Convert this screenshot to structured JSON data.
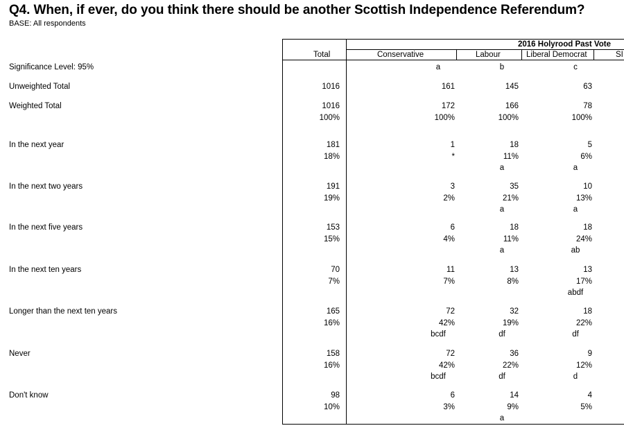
{
  "title": "Q4. When, if ever, do you think there should be another Scottish Independence Referendum?",
  "base": "BASE: All respondents",
  "banner": "2016 Holyrood Past Vote",
  "columns": {
    "total": "Total",
    "conservative": "Conservative",
    "labour": "Labour",
    "libdem": "Liberal Democrat",
    "snp_partial": "SI"
  },
  "rows": [
    {
      "label": "Significance Level: 95%",
      "total": [
        "",
        "",
        ""
      ],
      "con": [
        "a",
        "",
        ""
      ],
      "lab": [
        "b",
        "",
        ""
      ],
      "ld": [
        "c",
        "",
        ""
      ]
    },
    {
      "label": "Unweighted Total",
      "total": [
        "1016",
        "",
        ""
      ],
      "con": [
        "161",
        "",
        ""
      ],
      "lab": [
        "145",
        "",
        ""
      ],
      "ld": [
        "63",
        "",
        ""
      ]
    },
    {
      "label": "Weighted Total",
      "total": [
        "1016",
        "100%",
        ""
      ],
      "con": [
        "172",
        "100%",
        ""
      ],
      "lab": [
        "166",
        "100%",
        ""
      ],
      "ld": [
        "78",
        "100%",
        ""
      ]
    },
    {
      "label": "In the next year",
      "total": [
        "181",
        "18%",
        ""
      ],
      "con": [
        "1",
        "*",
        ""
      ],
      "lab": [
        "18",
        "11%",
        "a"
      ],
      "ld": [
        "5",
        "6%",
        "a"
      ]
    },
    {
      "label": "In the next two years",
      "total": [
        "191",
        "19%",
        ""
      ],
      "con": [
        "3",
        "2%",
        ""
      ],
      "lab": [
        "35",
        "21%",
        "a"
      ],
      "ld": [
        "10",
        "13%",
        "a"
      ]
    },
    {
      "label": "In the next five years",
      "total": [
        "153",
        "15%",
        ""
      ],
      "con": [
        "6",
        "4%",
        ""
      ],
      "lab": [
        "18",
        "11%",
        "a"
      ],
      "ld": [
        "18",
        "24%",
        "ab"
      ]
    },
    {
      "label": "In the next ten years",
      "total": [
        "70",
        "7%",
        ""
      ],
      "con": [
        "11",
        "7%",
        ""
      ],
      "lab": [
        "13",
        "8%",
        ""
      ],
      "ld": [
        "13",
        "17%",
        "abdf"
      ]
    },
    {
      "label": "Longer than the next ten years",
      "total": [
        "165",
        "16%",
        ""
      ],
      "con": [
        "72",
        "42%",
        "bcdf"
      ],
      "lab": [
        "32",
        "19%",
        "df"
      ],
      "ld": [
        "18",
        "22%",
        "df"
      ]
    },
    {
      "label": "Never",
      "total": [
        "158",
        "16%",
        ""
      ],
      "con": [
        "72",
        "42%",
        "bcdf"
      ],
      "lab": [
        "36",
        "22%",
        "df"
      ],
      "ld": [
        "9",
        "12%",
        "d"
      ]
    },
    {
      "label": "Don't know",
      "total": [
        "98",
        "10%",
        ""
      ],
      "con": [
        "6",
        "3%",
        ""
      ],
      "lab": [
        "14",
        "9%",
        "a"
      ],
      "ld": [
        "4",
        "5%",
        ""
      ]
    }
  ]
}
